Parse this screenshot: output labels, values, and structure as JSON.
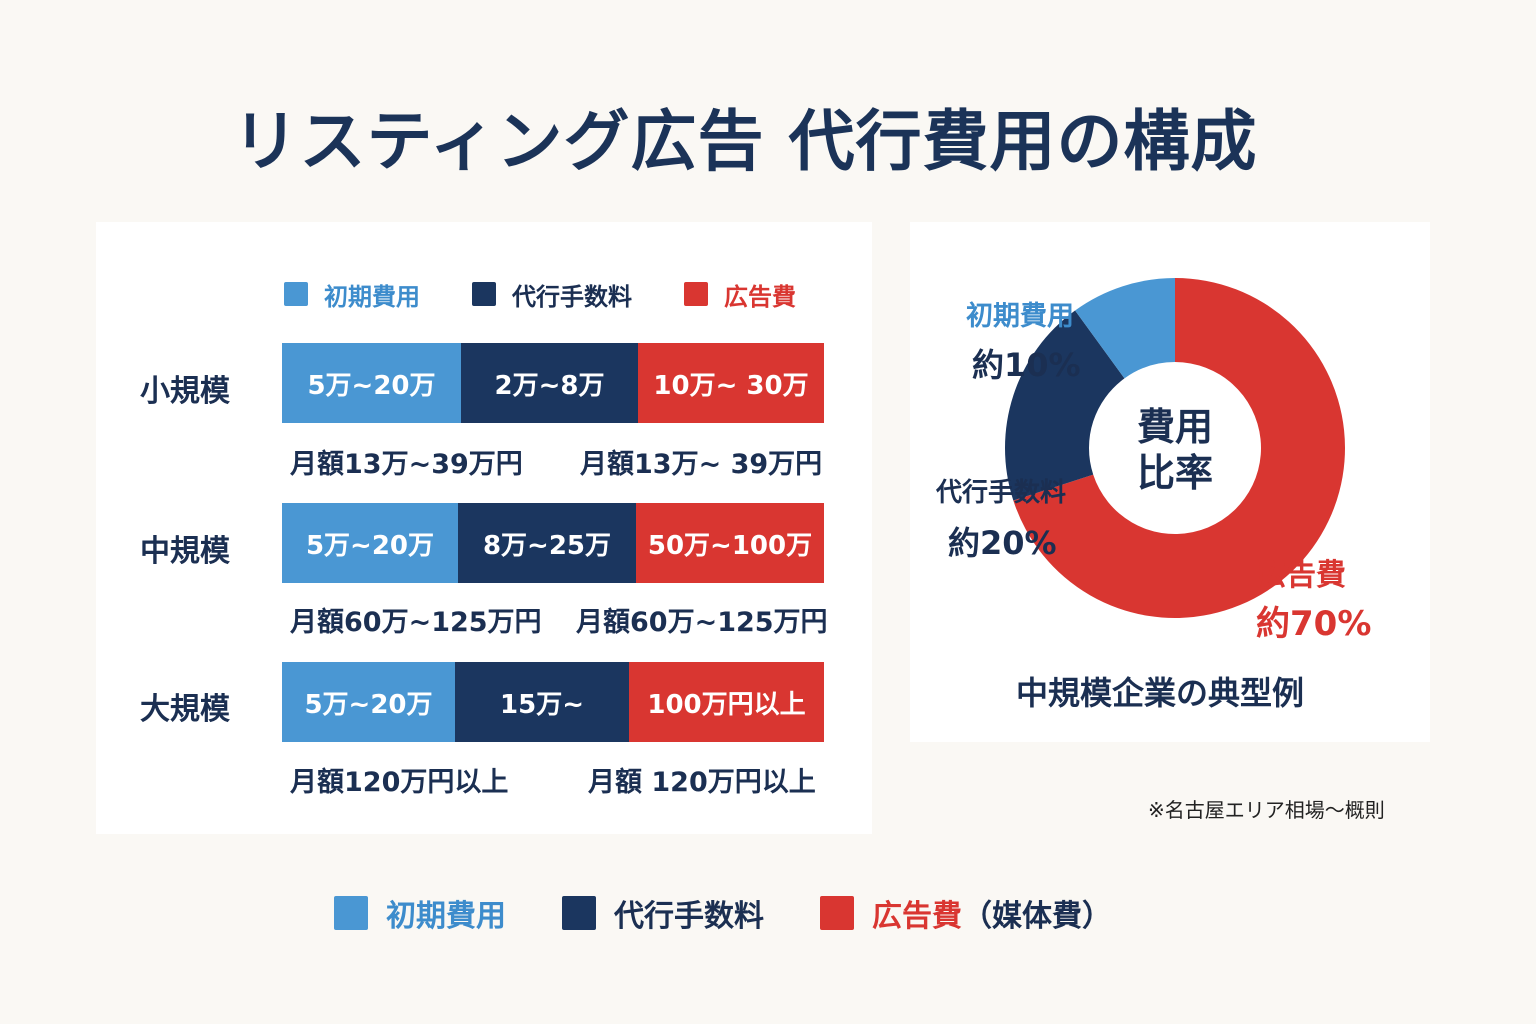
{
  "title": "リスティング広告 代行費用の構成",
  "colors": {
    "initial": "#4a97d3",
    "agency": "#1b365f",
    "ad": "#d93631",
    "text": "#1b2f52"
  },
  "legend_top": [
    {
      "label": "初期費用",
      "color": "#4a97d3"
    },
    {
      "label": "代行手数料",
      "color": "#1b365f"
    },
    {
      "label": "広告費",
      "color": "#d93631"
    }
  ],
  "legend_bottom": {
    "initial": "初期費用",
    "agency": "代行手数料",
    "ad": "広告費",
    "ad_suffix": "（媒体費）"
  },
  "chart_data": [
    {
      "type": "bar",
      "orientation": "horizontal-stacked",
      "categories": [
        "小規模",
        "中規模",
        "大規模"
      ],
      "series": [
        {
          "name": "初期費用",
          "labels": [
            "5万~20万",
            "5万~20万",
            "5万~20万"
          ]
        },
        {
          "name": "代行手数料",
          "labels": [
            "2万~8万",
            "8万~25万",
            "15万~"
          ]
        },
        {
          "name": "広告費",
          "labels": [
            "10万~ 30万",
            "50万~100万",
            "100万円以上"
          ]
        }
      ],
      "totals_left": [
        "月額13万~39万円",
        "月額60万~125万円",
        "月額120万円以上"
      ],
      "totals_right": [
        "月額13万~ 39万円",
        "月額60万~125万円",
        "月額 120万円以上"
      ]
    },
    {
      "type": "pie",
      "variant": "donut",
      "center_label": [
        "費用",
        "比率"
      ],
      "slices": [
        {
          "name": "初期費用",
          "value": 10,
          "label": "約10%",
          "color": "#4a97d3"
        },
        {
          "name": "代行手数料",
          "value": 20,
          "label": "約20%",
          "color": "#1b365f"
        },
        {
          "name": "広告費",
          "value": 70,
          "label": "約70%",
          "color": "#d93631"
        }
      ],
      "caption": "中規模企業の典型例"
    }
  ],
  "note": "※名古屋エリア相場～概則"
}
